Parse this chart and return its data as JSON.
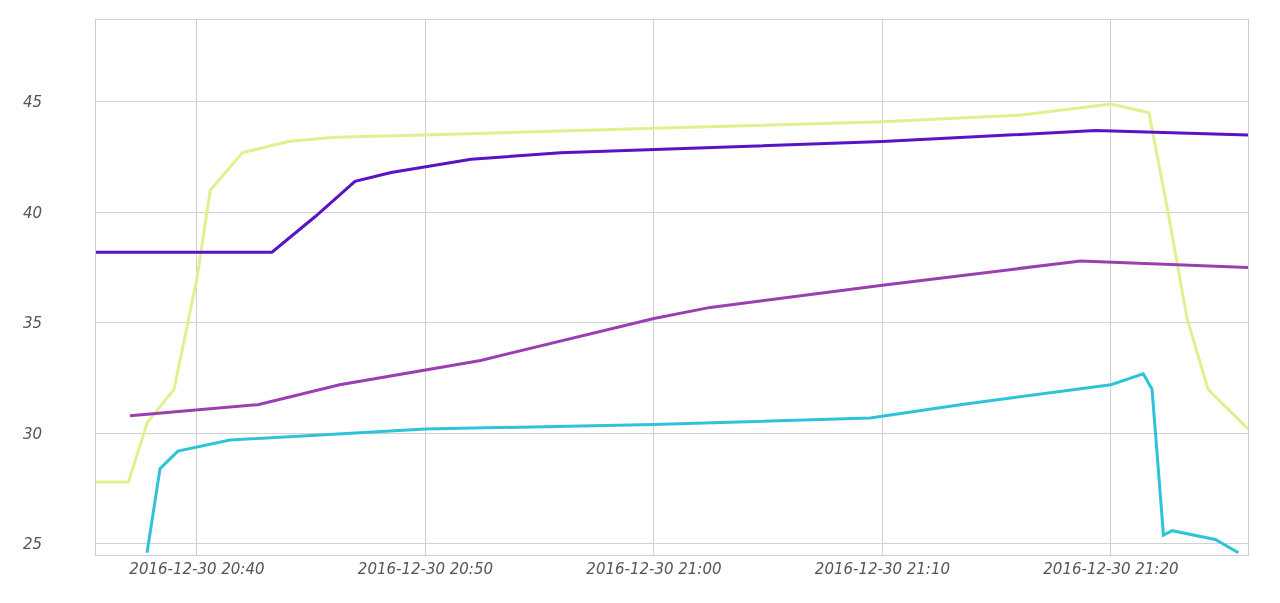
{
  "chart_data": {
    "type": "line",
    "xlim": [
      "2016-12-30T20:35:35",
      "2016-12-30T21:26:00"
    ],
    "ylim": [
      24.5,
      48.7
    ],
    "xticks": [
      {
        "value": "2016-12-30T20:40",
        "label": "2016-12-30 20:40"
      },
      {
        "value": "2016-12-30T20:50",
        "label": "2016-12-30 20:50"
      },
      {
        "value": "2016-12-30T21:00",
        "label": "2016-12-30 21:00"
      },
      {
        "value": "2016-12-30T21:10",
        "label": "2016-12-30 21:10"
      },
      {
        "value": "2016-12-30T21:20",
        "label": "2016-12-30 21:20"
      }
    ],
    "yticks": [
      25,
      30,
      35,
      40,
      45
    ],
    "grid": true,
    "marker": "none",
    "line_style": "solid",
    "series": [
      {
        "color": "#e3ef8f",
        "x": [
          "2016-12-30T20:35:35",
          "2016-12-30T20:37:00",
          "2016-12-30T20:37:50",
          "2016-12-30T20:39:00",
          "2016-12-30T20:40:00",
          "2016-12-30T20:40:35",
          "2016-12-30T20:42:00",
          "2016-12-30T20:44:00",
          "2016-12-30T20:46:00",
          "2016-12-30T20:50:00",
          "2016-12-30T21:00:00",
          "2016-12-30T21:10:00",
          "2016-12-30T21:16:05",
          "2016-12-30T21:20:00",
          "2016-12-30T21:21:40",
          "2016-12-30T21:22:30",
          "2016-12-30T21:23:20",
          "2016-12-30T21:24:15",
          "2016-12-30T21:26:00"
        ],
        "values": [
          27.8,
          27.8,
          30.5,
          32.0,
          37.0,
          41.0,
          42.7,
          43.2,
          43.4,
          43.5,
          43.8,
          44.1,
          44.4,
          44.9,
          44.5,
          40.0,
          35.2,
          32.0,
          30.2
        ]
      },
      {
        "color": "#5a13c4",
        "x": [
          "2016-12-30T20:35:35",
          "2016-12-30T20:43:17",
          "2016-12-30T20:45:10",
          "2016-12-30T20:46:55",
          "2016-12-30T20:48:30",
          "2016-12-30T20:52:00",
          "2016-12-30T20:55:55",
          "2016-12-30T21:10:00",
          "2016-12-30T21:19:20",
          "2016-12-30T21:26:00"
        ],
        "values": [
          38.2,
          38.2,
          39.8,
          41.4,
          41.8,
          42.4,
          42.7,
          43.2,
          43.7,
          43.5
        ]
      },
      {
        "color": "#9a3fb2",
        "x": [
          "2016-12-30T20:37:04",
          "2016-12-30T20:42:40",
          "2016-12-30T20:46:15",
          "2016-12-30T20:52:25",
          "2016-12-30T21:00:00",
          "2016-12-30T21:02:28",
          "2016-12-30T21:10:00",
          "2016-12-30T21:18:40",
          "2016-12-30T21:26:00"
        ],
        "values": [
          30.8,
          31.3,
          32.2,
          33.3,
          35.2,
          35.7,
          36.7,
          37.8,
          37.5
        ]
      },
      {
        "color": "#2fc3d9",
        "x": [
          "2016-12-30T20:37:49",
          "2016-12-30T20:38:23",
          "2016-12-30T20:39:10",
          "2016-12-30T20:41:27",
          "2016-12-30T20:50:00",
          "2016-12-30T21:00:00",
          "2016-12-30T21:09:28",
          "2016-12-30T21:13:24",
          "2016-12-30T21:20:00",
          "2016-12-30T21:21:25",
          "2016-12-30T21:21:48",
          "2016-12-30T21:22:18",
          "2016-12-30T21:22:41",
          "2016-12-30T21:24:34",
          "2016-12-30T21:25:35"
        ],
        "values": [
          24.6,
          28.4,
          29.2,
          29.7,
          30.2,
          30.4,
          30.7,
          31.3,
          32.2,
          32.7,
          32.0,
          25.4,
          25.6,
          25.2,
          24.6
        ]
      }
    ]
  }
}
